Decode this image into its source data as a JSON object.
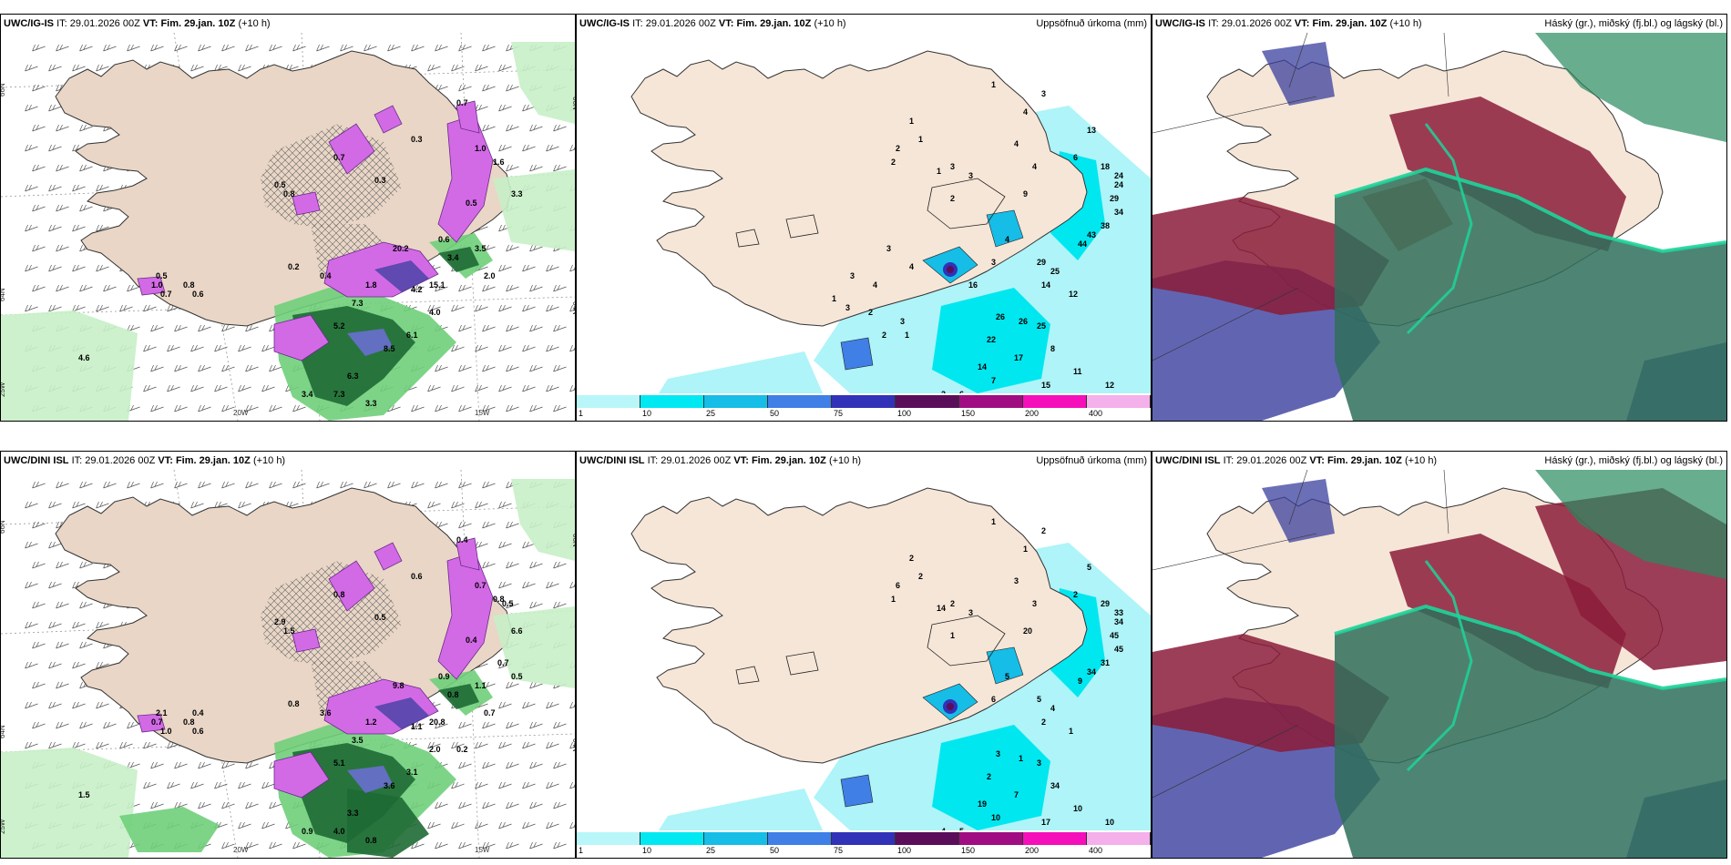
{
  "colors": {
    "land": "#f6e6d8",
    "land_tan": "#e9d6c6",
    "sea_cyan": "#aef4f8",
    "cyan": "#00e7f0",
    "purple": "#d26ae6",
    "dark_green": "#1e6a34",
    "mid_green": "#6fcf7a",
    "light_green": "#c6f0c6",
    "maroon": "#8b1c3a",
    "navy": "#3a3f9e",
    "teal": "#2f6f5a"
  },
  "panels": [
    {
      "id": "top-left",
      "model": "UWC/IG-IS",
      "it_label": "IT:",
      "it_value": "29.01.2026 00Z",
      "vt_label": "VT:",
      "vt_value": "Fim. 29.jan. 10Z",
      "lead": "(+10 h)",
      "right_title": "",
      "axis_labels": [
        "66N",
        "64N",
        "25W",
        "20W",
        "15W",
        "66N",
        "64N"
      ],
      "values": [
        "0.7",
        "0.3",
        "0.7",
        "0.3",
        "0.5",
        "1.8",
        "4.2",
        "7.3",
        "15.1",
        "20.2",
        "5.2",
        "6.1",
        "8.5",
        "6.3",
        "7.3",
        "3.3",
        "3.4",
        "3.3",
        "4.6",
        "2.0",
        "0.5",
        "1.0",
        "0.7",
        "0.8",
        "0.6",
        "1.0",
        "1.6",
        "0.6",
        "3.4",
        "0.5",
        "0.8",
        "0.2",
        "0.4",
        "4.0",
        "3.5"
      ],
      "icons": []
    },
    {
      "id": "top-middle",
      "model": "UWC/IG-IS",
      "it_label": "IT:",
      "it_value": "29.01.2026 00Z",
      "vt_label": "VT:",
      "vt_value": "Fim. 29.jan. 10Z",
      "lead": "(+10 h)",
      "right_title": "Uppsöfnuð úrkoma (mm)",
      "values": [
        "1",
        "4",
        "3",
        "1",
        "1",
        "2",
        "2",
        "1",
        "3",
        "4",
        "4",
        "6",
        "13",
        "3",
        "2",
        "9",
        "18",
        "24",
        "24",
        "29",
        "34",
        "38",
        "43",
        "44",
        "4",
        "3",
        "29",
        "25",
        "14",
        "12",
        "26",
        "26",
        "25",
        "22",
        "17",
        "8",
        "14",
        "15",
        "12",
        "11",
        "7",
        "6",
        "2",
        "3",
        "1",
        "2",
        "2",
        "3",
        "1",
        "3",
        "4",
        "3",
        "4",
        "16"
      ],
      "legend": [
        "1",
        "10",
        "25",
        "50",
        "75",
        "100",
        "150",
        "200",
        "400"
      ],
      "legend_colors": [
        "#b8f6fa",
        "#00e9f2",
        "#16bde6",
        "#3f7fe6",
        "#3232b8",
        "#5a0e5a",
        "#a00d82",
        "#f50fbb",
        "#f4b0ea"
      ]
    },
    {
      "id": "top-right",
      "model": "UWC/IG-IS",
      "it_label": "IT:",
      "it_value": "29.01.2026 00Z",
      "vt_label": "VT:",
      "vt_value": "Fim. 29.jan. 10Z",
      "lead": "(+10 h)",
      "right_title": "Háský (gr.), miðský (fj.bl.) og lágský (bl.)"
    },
    {
      "id": "bottom-left",
      "model": "UWC/DINI ISL",
      "it_label": "IT:",
      "it_value": "29.01.2026 00Z",
      "vt_label": "VT:",
      "vt_value": "Fim. 29.jan. 10Z",
      "lead": "(+10 h)",
      "right_title": "",
      "axis_labels": [
        "66N",
        "64N",
        "25W",
        "20W",
        "15W",
        "66N",
        "64N"
      ],
      "values": [
        "0.4",
        "0.6",
        "0.8",
        "0.5",
        "0.4",
        "1.2",
        "1.1",
        "3.5",
        "20.8",
        "9.8",
        "5.1",
        "3.1",
        "3.6",
        "3.3",
        "4.0",
        "0.8",
        "0.9",
        "6.6",
        "1.5",
        "0.7",
        "2.1",
        "0.7",
        "1.0",
        "0.8",
        "0.6",
        "0.7",
        "0.8",
        "0.9",
        "0.8",
        "2.9",
        "1.5",
        "0.8",
        "3.6",
        "2.0",
        "1.1",
        "0.5",
        "0.7",
        "0.2",
        "0.5",
        "0.4"
      ]
    },
    {
      "id": "bottom-middle",
      "model": "UWC/DINI ISL",
      "it_label": "IT:",
      "it_value": "29.01.2026 00Z",
      "vt_label": "VT:",
      "vt_value": "Fim. 29.jan. 10Z",
      "lead": "(+10 h)",
      "right_title": "Uppsöfnuð úrkoma (mm)",
      "values": [
        "1",
        "1",
        "2",
        "2",
        "2",
        "6",
        "1",
        "14",
        "2",
        "3",
        "3",
        "2",
        "5",
        "3",
        "1",
        "20",
        "29",
        "33",
        "34",
        "45",
        "45",
        "31",
        "34",
        "9",
        "5",
        "6",
        "5",
        "4",
        "2",
        "1",
        "3",
        "1",
        "3",
        "2",
        "7",
        "34",
        "19",
        "17",
        "10",
        "10",
        "10",
        "5",
        "4"
      ],
      "legend": [
        "1",
        "10",
        "25",
        "50",
        "75",
        "100",
        "150",
        "200",
        "400"
      ],
      "legend_colors": [
        "#b8f6fa",
        "#00e9f2",
        "#16bde6",
        "#3f7fe6",
        "#3232b8",
        "#5a0e5a",
        "#a00d82",
        "#f50fbb",
        "#f4b0ea"
      ]
    },
    {
      "id": "bottom-right",
      "model": "UWC/DINI ISL",
      "it_label": "IT:",
      "it_value": "29.01.2026 00Z",
      "vt_label": "VT:",
      "vt_value": "Fim. 29.jan. 10Z",
      "lead": "(+10 h)",
      "right_title": "Háský (gr.), miðský (fj.bl.) og lágský (bl.)"
    }
  ]
}
